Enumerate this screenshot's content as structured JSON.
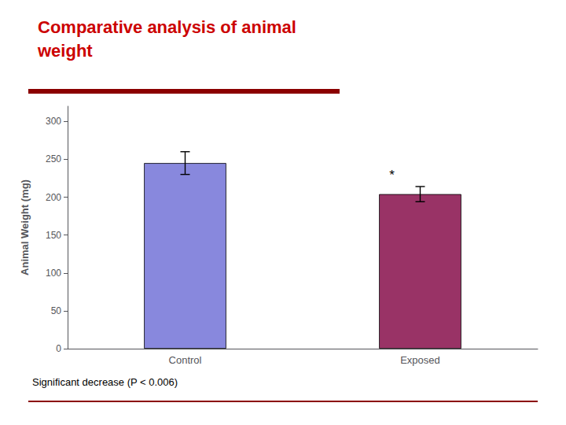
{
  "chart_data": {
    "type": "bar",
    "title": "Comparative analysis of animal\nweight",
    "subtitle": "Significant decrease (P < 0.006)",
    "categories": [
      "Control",
      "Exposed"
    ],
    "values": [
      245,
      204
    ],
    "errors": [
      15,
      10
    ],
    "colors": [
      "#8888dd",
      "#993366"
    ],
    "ylabel": "Animal Weight (mg)",
    "ylim": [
      0,
      320
    ],
    "yticks": [
      0,
      50,
      100,
      150,
      200,
      250,
      300
    ],
    "annotation": {
      "text": "*",
      "category": "Exposed"
    },
    "grid": false
  }
}
